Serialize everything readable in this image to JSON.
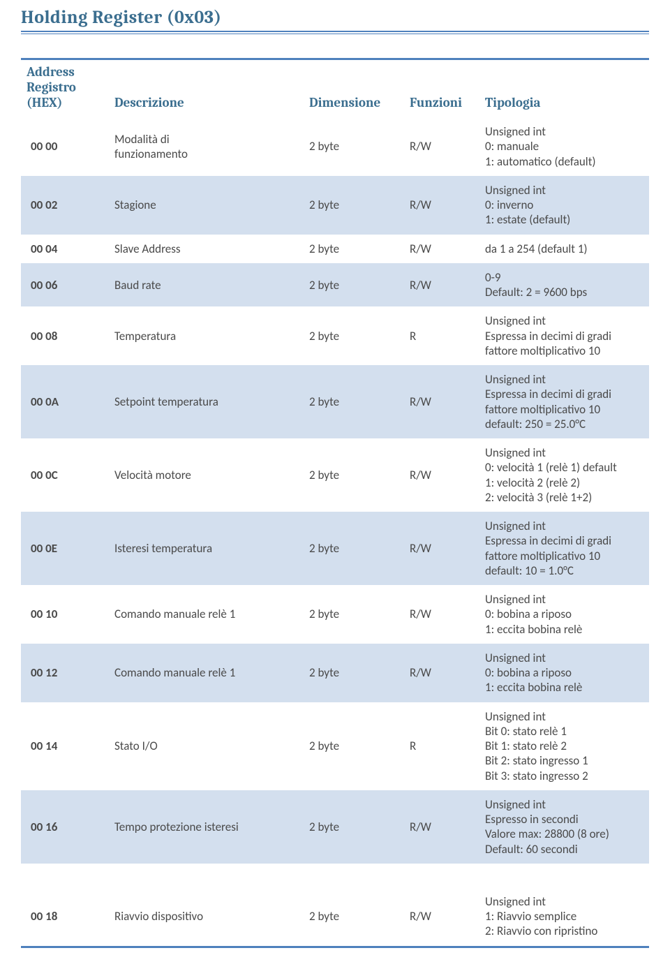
{
  "colors": {
    "title": "#3b6e8f",
    "underline": "#4f81bd",
    "header_text": "#3b6e8f",
    "row_shade": "#d3dfee",
    "row_plain": "#ffffff",
    "text": "#4a4a4a"
  },
  "title": "Holding  Register (0x03)",
  "columns": {
    "addr": "Address\nRegistro\n(HEX)",
    "desc": "Descrizione",
    "dim": "Dimensione",
    "func": "Funzioni",
    "tip": "Tipologia"
  },
  "rows": [
    {
      "addr": "00 00",
      "desc": "Modalità di\nfunzionamento",
      "dim": "2 byte",
      "func": "R/W",
      "tip": "Unsigned int\n0: manuale\n1: automatico (default)",
      "shaded": false
    },
    {
      "addr": "00 02",
      "desc": "Stagione",
      "dim": "2 byte",
      "func": "R/W",
      "tip": "Unsigned int\n0: inverno\n1: estate (default)",
      "shaded": true
    },
    {
      "addr": "00 04",
      "desc": "Slave Address",
      "dim": "2 byte",
      "func": "R/W",
      "tip": "da 1 a 254 (default 1)",
      "shaded": false
    },
    {
      "addr": "00 06",
      "desc": "Baud rate",
      "dim": "2 byte",
      "func": "R/W",
      "tip": "0-9\nDefault: 2 = 9600 bps",
      "shaded": true
    },
    {
      "addr": "00 08",
      "desc": "Temperatura",
      "dim": "2 byte",
      "func": "R",
      "tip": "Unsigned int\nEspressa in decimi di gradi\nfattore moltiplicativo 10",
      "shaded": false
    },
    {
      "addr": "00 0A",
      "desc": "Setpoint temperatura",
      "dim": "2 byte",
      "func": "R/W",
      "tip": "Unsigned int\nEspressa in decimi di gradi\nfattore moltiplicativo 10\ndefault: 250 = 25.0°C",
      "shaded": true
    },
    {
      "addr": "00 0C",
      "desc": "Velocità motore",
      "dim": "2 byte",
      "func": "R/W",
      "tip": "Unsigned int\n0: velocità 1 (relè 1) default\n1: velocità 2 (relè 2)\n2: velocità 3 (relè 1+2)",
      "shaded": false
    },
    {
      "addr": "00 0E",
      "desc": "Isteresi temperatura",
      "dim": "2 byte",
      "func": "R/W",
      "tip": "Unsigned int\nEspressa in decimi di gradi\nfattore moltiplicativo 10\ndefault: 10 = 1.0°C",
      "shaded": true
    },
    {
      "addr": "00 10",
      "desc": "Comando manuale relè 1",
      "dim": "2 byte",
      "func": "R/W",
      "tip": "Unsigned int\n0: bobina a riposo\n1: eccita bobina relè",
      "shaded": false
    },
    {
      "addr": "00 12",
      "desc": "Comando manuale relè 1",
      "dim": "2 byte",
      "func": "R/W",
      "tip": "Unsigned int\n0: bobina a riposo\n1: eccita bobina relè",
      "shaded": true
    },
    {
      "addr": "00 14",
      "desc": "Stato I/O",
      "dim": "2 byte",
      "func": "R",
      "tip": "Unsigned int\nBit 0: stato relè 1\nBit 1: stato relè 2\nBit 2: stato ingresso 1\nBit 3: stato ingresso 2",
      "shaded": false
    },
    {
      "addr": "00 16",
      "desc": "Tempo protezione isteresi",
      "dim": "2 byte",
      "func": "R/W",
      "tip": "Unsigned int\nEspresso in secondi\nValore max: 28800 (8 ore)\nDefault: 60 secondi",
      "shaded": true
    },
    {
      "addr": "00 18",
      "desc": "Riavvio dispositivo",
      "dim": "2 byte",
      "func": "R/W",
      "tip": "Unsigned int\n1: Riavvio semplice\n2: Riavvio con ripristino",
      "shaded": false,
      "gap_before": 34
    }
  ]
}
